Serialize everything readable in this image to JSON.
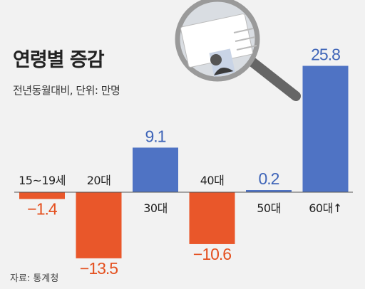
{
  "chart_data": {
    "type": "bar",
    "title": "연령별 증감",
    "subtitle": "전년동월대비, 단위: 만명",
    "source": "자료: 통계청",
    "categories": [
      "15~19세",
      "20대",
      "30대",
      "40대",
      "50대",
      "60대↑"
    ],
    "values": [
      -1.4,
      -13.5,
      9.1,
      -10.6,
      0.2,
      25.8
    ],
    "value_labels": [
      "−1.4",
      "−13.5",
      "9.1",
      "−10.6",
      "0.2",
      "25.8"
    ],
    "colors": {
      "positive": "#4f73c4",
      "negative": "#e9572a",
      "value_positive": "#3f65b8",
      "value_negative": "#e4501f",
      "text": "#222222"
    }
  }
}
